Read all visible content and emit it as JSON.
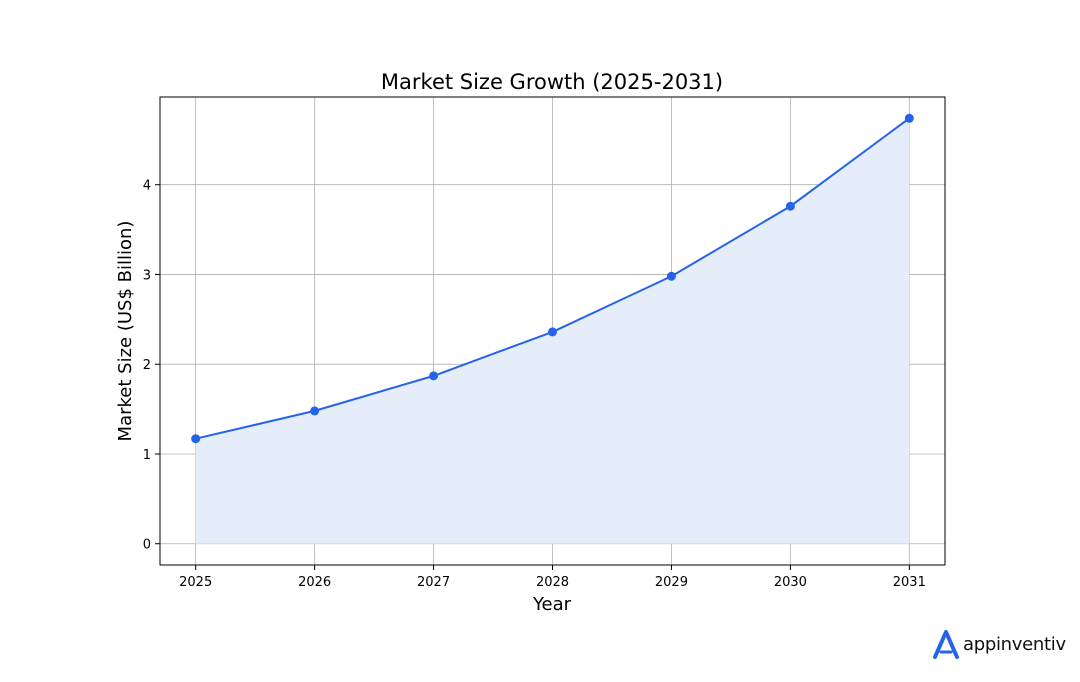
{
  "chart_data": {
    "type": "area",
    "title": "Market Size Growth (2025-2031)",
    "xlabel": "Year",
    "ylabel": "Market Size (US$ Billion)",
    "categories": [
      "2025",
      "2026",
      "2027",
      "2028",
      "2029",
      "2030",
      "2031"
    ],
    "x": [
      2025,
      2026,
      2027,
      2028,
      2029,
      2030,
      2031
    ],
    "series": [
      {
        "name": "Market Size",
        "values": [
          1.17,
          1.48,
          1.87,
          2.36,
          2.98,
          3.76,
          4.74
        ]
      }
    ],
    "yticks": [
      0,
      1,
      2,
      3,
      4
    ],
    "ylim": [
      -0.237,
      4.977
    ],
    "xlim": [
      2024.7,
      2031.3
    ],
    "grid": true,
    "line_color": "#2563eb",
    "fill_color": "#e6edfa",
    "grid_color": "#b0b0b0"
  },
  "branding": {
    "name": "appinventiv",
    "logo_color": "#2563eb"
  }
}
